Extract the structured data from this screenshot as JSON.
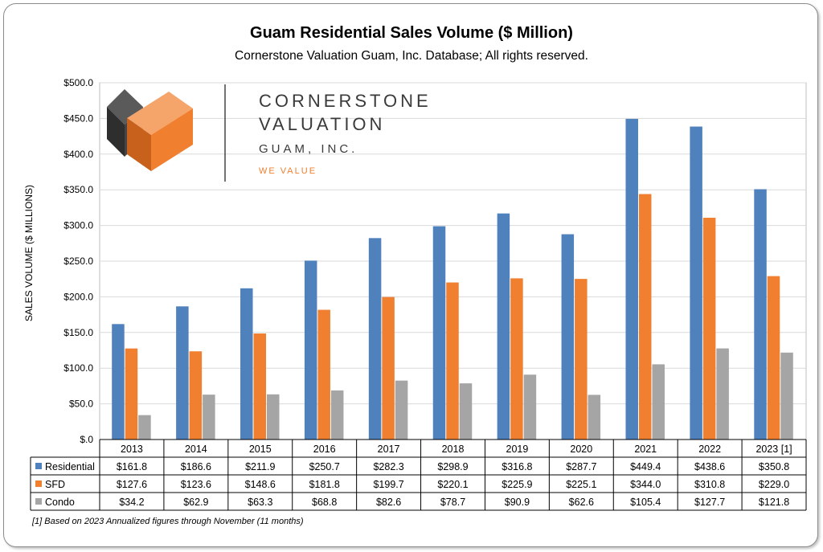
{
  "title": "Guam Residential Sales Volume ($ Million)",
  "subtitle": "Cornerstone Valuation Guam, Inc. Database; All rights reserved.",
  "footnote": "[1] Based on 2023 Annualized figures through November (11 months)",
  "logo": {
    "line1": "CORNERSTONE",
    "line2": "VALUATION",
    "line3": "GUAM, INC.",
    "tagline": "WE VALUE",
    "colors": {
      "dark": "#3a3a3a",
      "orange": "#f07f2f",
      "orange_light": "#f5a46a",
      "tagline": "#f07f2f"
    }
  },
  "chart_data": {
    "type": "bar",
    "ylabel": "SALES VOLUME ($ MILLIONS)",
    "xlabel": "",
    "ylim": [
      0,
      500
    ],
    "yticks": [
      "$.0",
      "$50.0",
      "$100.0",
      "$150.0",
      "$200.0",
      "$250.0",
      "$300.0",
      "$350.0",
      "$400.0",
      "$450.0",
      "$500.0"
    ],
    "grid": true,
    "legend": "data table",
    "categories": [
      "2013",
      "2014",
      "2015",
      "2016",
      "2017",
      "2018",
      "2019",
      "2020",
      "2021",
      "2022",
      "2023 [1]"
    ],
    "series": [
      {
        "name": "Residential",
        "color": "#4f81bd",
        "values": [
          161.8,
          186.6,
          211.9,
          250.7,
          282.3,
          298.9,
          316.8,
          287.7,
          449.4,
          438.6,
          350.8
        ],
        "labels": [
          "$161.8",
          "$186.6",
          "$211.9",
          "$250.7",
          "$282.3",
          "$298.9",
          "$316.8",
          "$287.7",
          "$449.4",
          "$438.6",
          "$350.8"
        ]
      },
      {
        "name": "SFD",
        "color": "#f07f2f",
        "values": [
          127.6,
          123.6,
          148.6,
          181.8,
          199.7,
          220.1,
          225.9,
          225.1,
          344.0,
          310.8,
          229.0
        ],
        "labels": [
          "$127.6",
          "$123.6",
          "$148.6",
          "$181.8",
          "$199.7",
          "$220.1",
          "$225.9",
          "$225.1",
          "$344.0",
          "$310.8",
          "$229.0"
        ]
      },
      {
        "name": "Condo",
        "color": "#a5a5a5",
        "values": [
          34.2,
          62.9,
          63.3,
          68.8,
          82.6,
          78.7,
          90.9,
          62.6,
          105.4,
          127.7,
          121.8
        ],
        "labels": [
          "$34.2",
          "$62.9",
          "$63.3",
          "$68.8",
          "$82.6",
          "$78.7",
          "$90.9",
          "$62.6",
          "$105.4",
          "$127.7",
          "$121.8"
        ]
      }
    ]
  }
}
